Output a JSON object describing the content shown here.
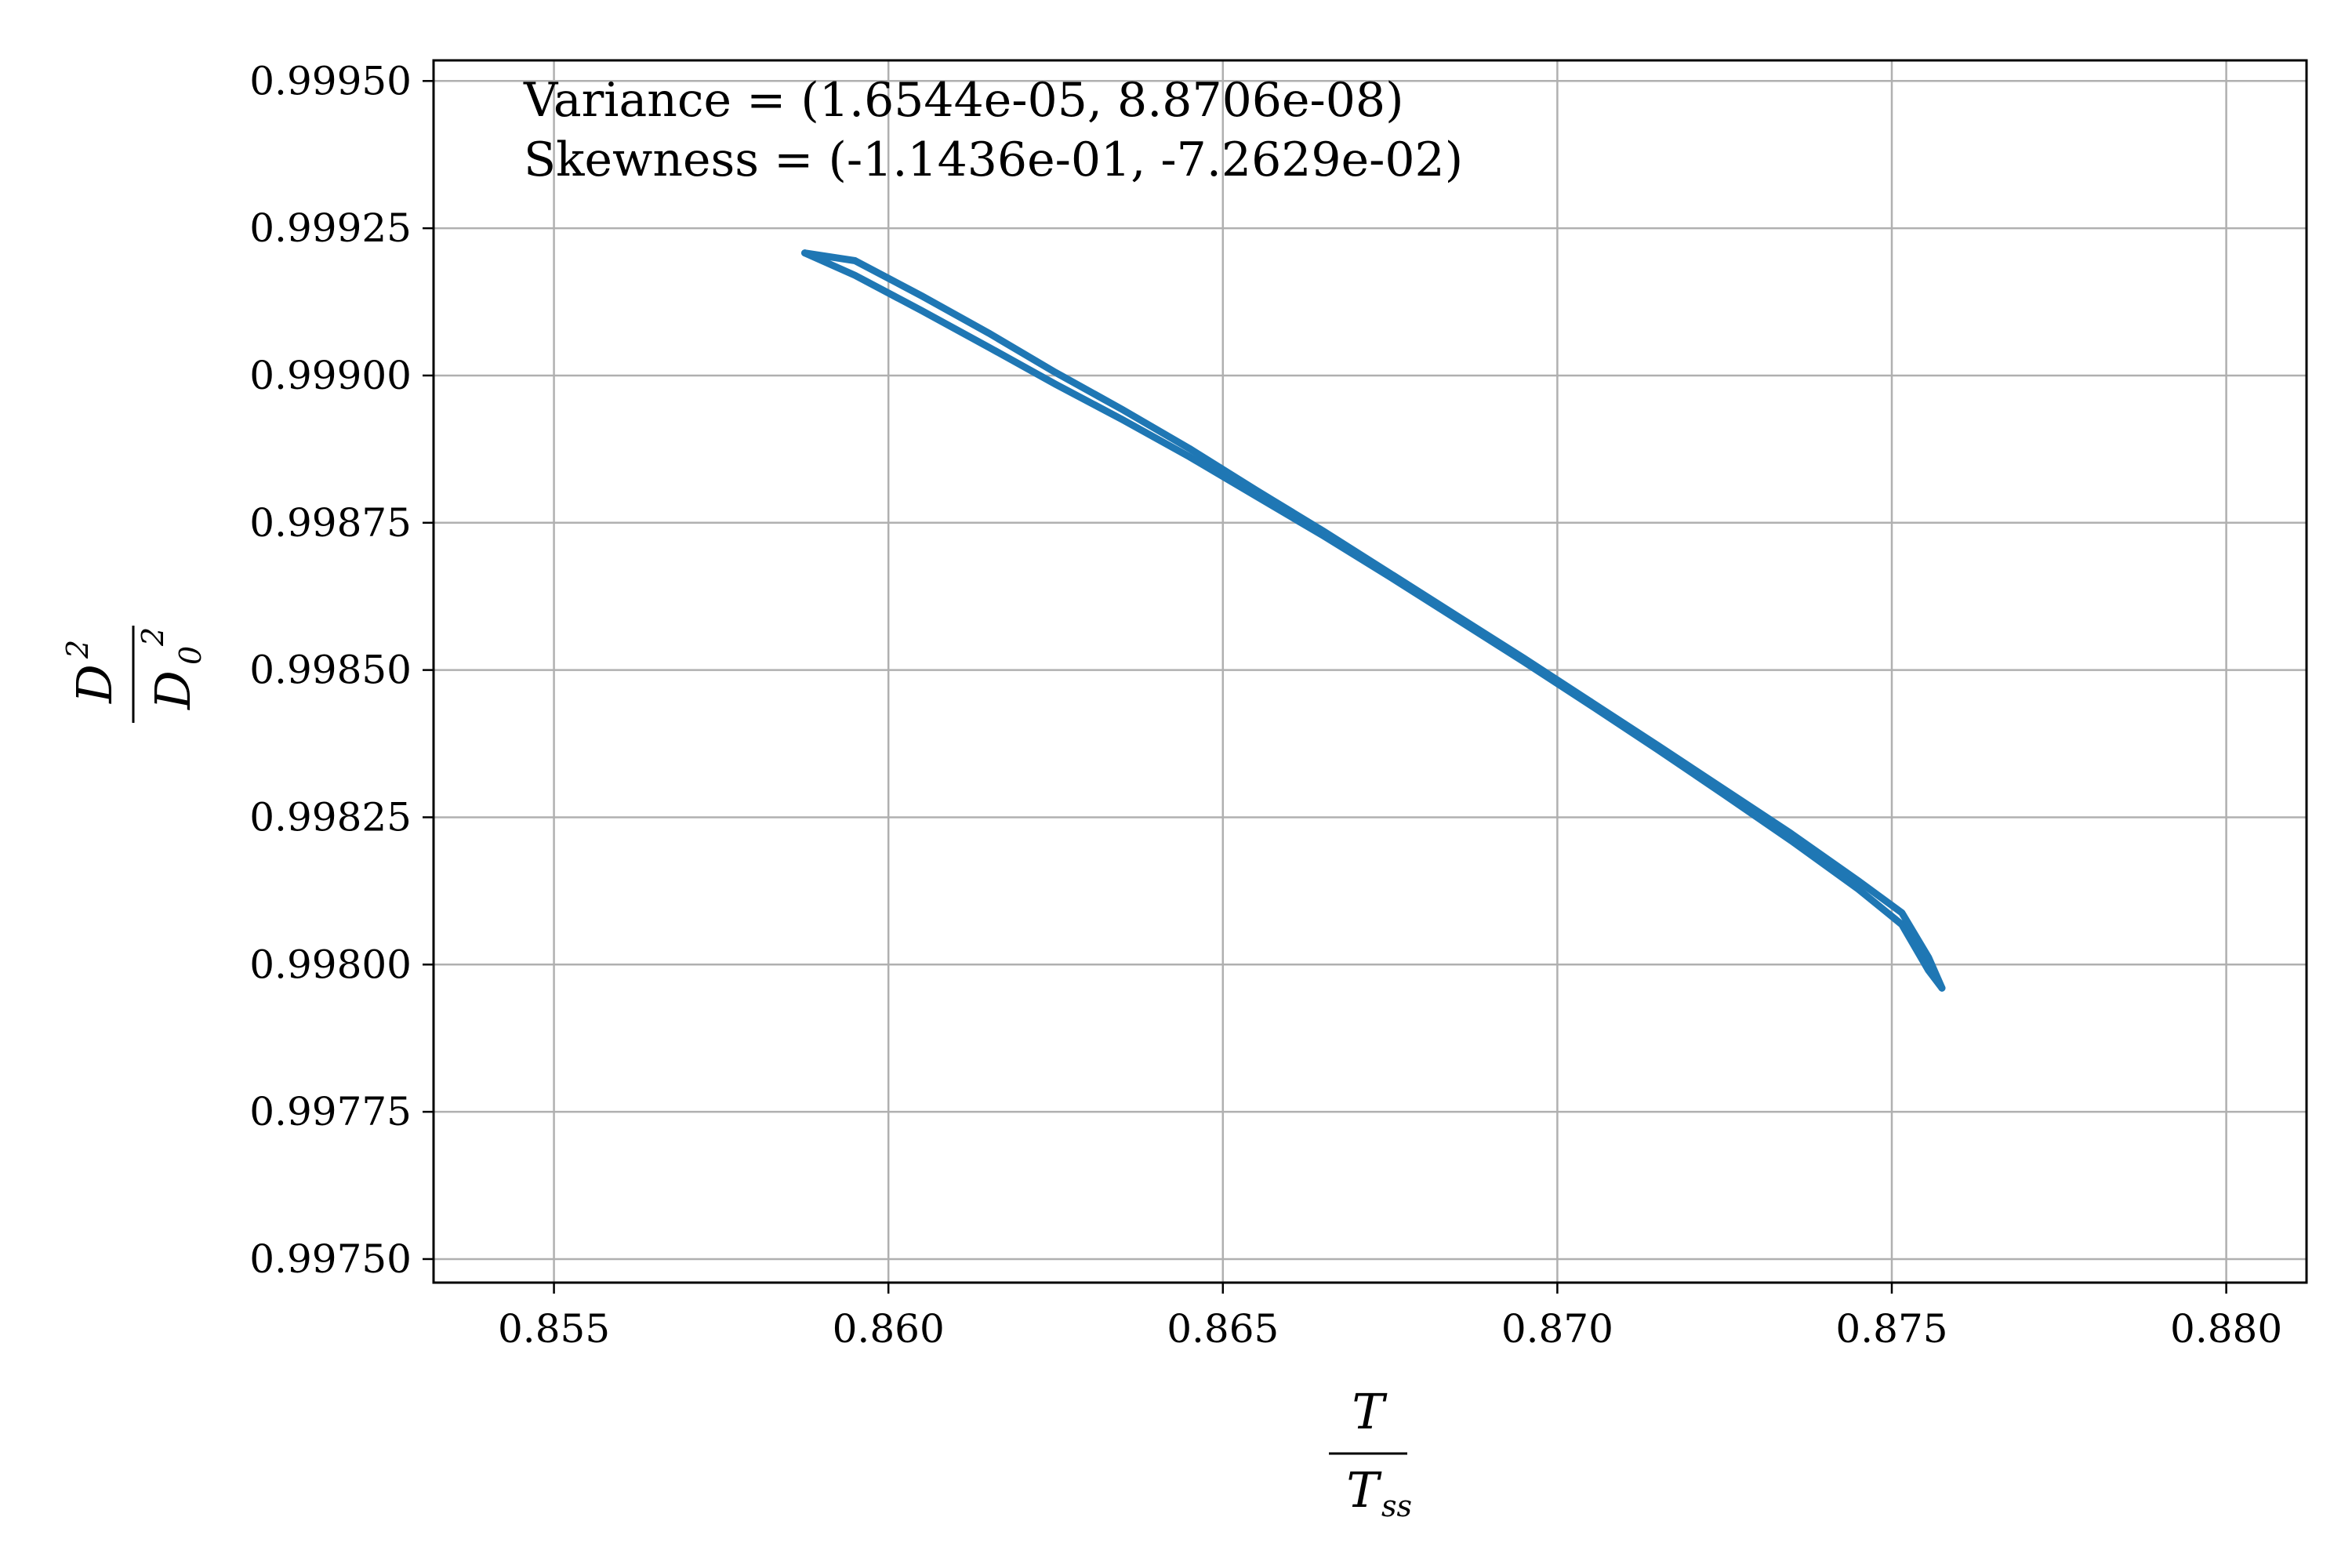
{
  "chart_data": {
    "type": "line",
    "title": "",
    "xlabel": {
      "numerator": "T",
      "denominator": "T",
      "denominator_sub": "ss"
    },
    "ylabel": {
      "numerator": "D",
      "numerator_sup": "2",
      "denominator": "D",
      "denominator_sub": "0",
      "denominator_sup": "2"
    },
    "xlim": [
      0.8532,
      0.8812
    ],
    "ylim": [
      0.99746,
      0.999535
    ],
    "xticks": [
      0.855,
      0.86,
      0.865,
      0.87,
      0.875,
      0.88
    ],
    "xtick_labels": [
      "0.855",
      "0.860",
      "0.865",
      "0.870",
      "0.875",
      "0.880"
    ],
    "yticks": [
      0.9975,
      0.99775,
      0.998,
      0.99825,
      0.9985,
      0.99875,
      0.999,
      0.99925,
      0.9995
    ],
    "ytick_labels": [
      "0.99750",
      "0.99775",
      "0.99800",
      "0.99825",
      "0.99850",
      "0.99875",
      "0.99900",
      "0.99925",
      "0.99950"
    ],
    "grid": true,
    "annotations": [
      "Variance = (1.6544e-05, 8.8706e-08)",
      "Skewness = (-1.1436e-01, -7.2629e-02)"
    ],
    "color": "#1f77b4",
    "series": [
      {
        "x": [
          0.85875,
          0.8595,
          0.8605,
          0.8615,
          0.8625,
          0.8635,
          0.8645,
          0.8655,
          0.8665,
          0.8675,
          0.8685,
          0.8695,
          0.8705,
          0.8715,
          0.8725,
          0.8735,
          0.8745,
          0.87515,
          0.87555,
          0.87575
        ],
        "y": [
          0.999208,
          0.99917,
          0.99911,
          0.999048,
          0.998985,
          0.998925,
          0.998862,
          0.998795,
          0.998728,
          0.998658,
          0.998586,
          0.998514,
          0.99844,
          0.998365,
          0.998288,
          0.99821,
          0.998128,
          0.998068,
          0.99799,
          0.99796
        ]
      },
      {
        "x": [
          0.85875,
          0.8595,
          0.8605,
          0.8615,
          0.8625,
          0.8635,
          0.8645,
          0.8655,
          0.8665,
          0.8675,
          0.8685,
          0.8695,
          0.8705,
          0.8715,
          0.8725,
          0.8735,
          0.8745,
          0.87515,
          0.87555,
          0.87575
        ],
        "y": [
          0.999208,
          0.999195,
          0.999135,
          0.999072,
          0.999005,
          0.998942,
          0.998876,
          0.998805,
          0.998736,
          0.998664,
          0.998592,
          0.99852,
          0.998446,
          0.998372,
          0.998297,
          0.998222,
          0.998142,
          0.998088,
          0.998012,
          0.99796
        ]
      }
    ]
  }
}
